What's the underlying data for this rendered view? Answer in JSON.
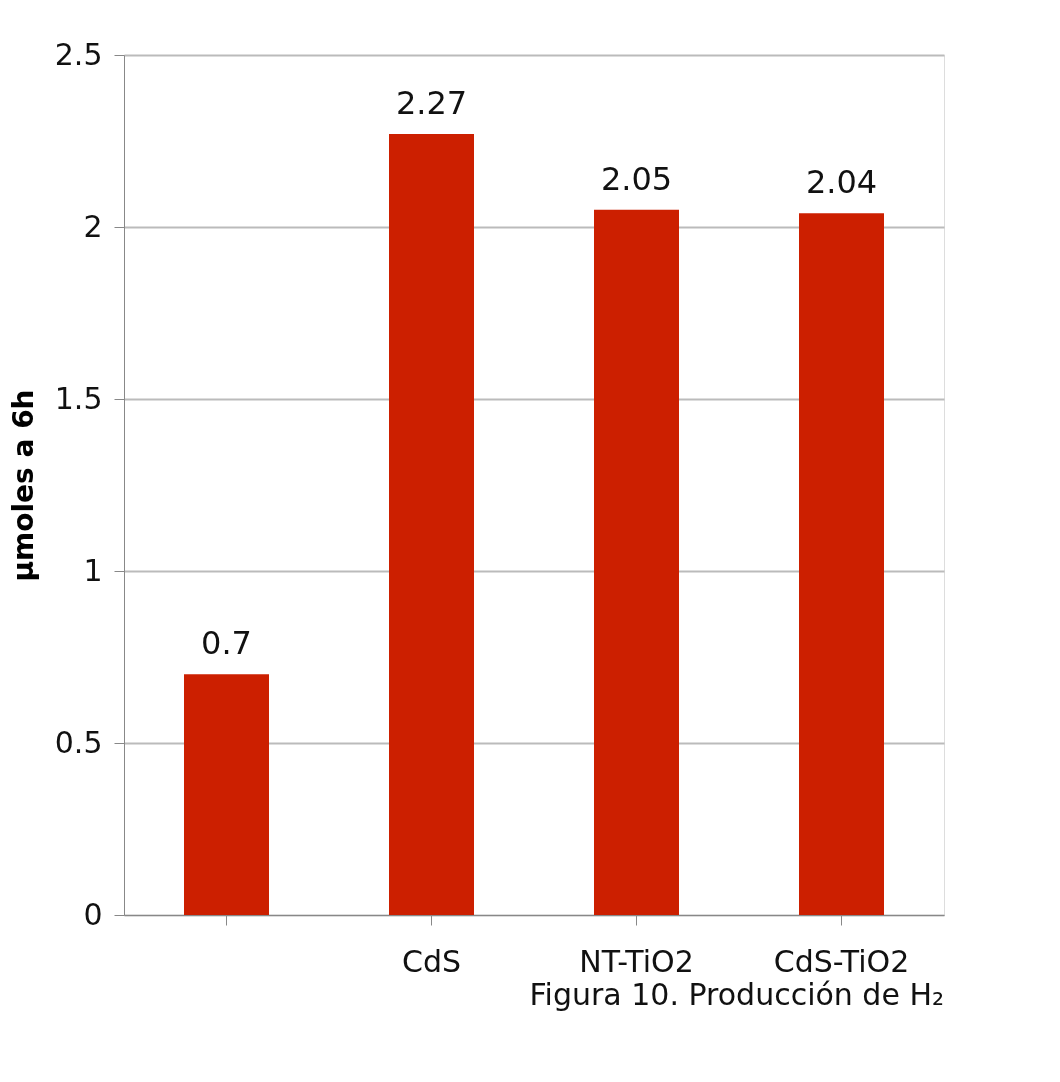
{
  "chart_data": {
    "type": "bar",
    "ylabel": "µmoles a 6h",
    "categories": [
      null,
      "CdS",
      "NT-TiO2",
      "CdS-TiO2"
    ],
    "values": [
      0.7,
      2.27,
      2.05,
      2.04
    ],
    "color": "#cc1f00",
    "ylim": [
      0,
      2.5
    ],
    "yticks": [
      0,
      0.5,
      1,
      1.5,
      2,
      2.5
    ],
    "grid": "y",
    "data_labels": true,
    "annotations": [
      "Figura 10. Producción de H₂"
    ]
  }
}
